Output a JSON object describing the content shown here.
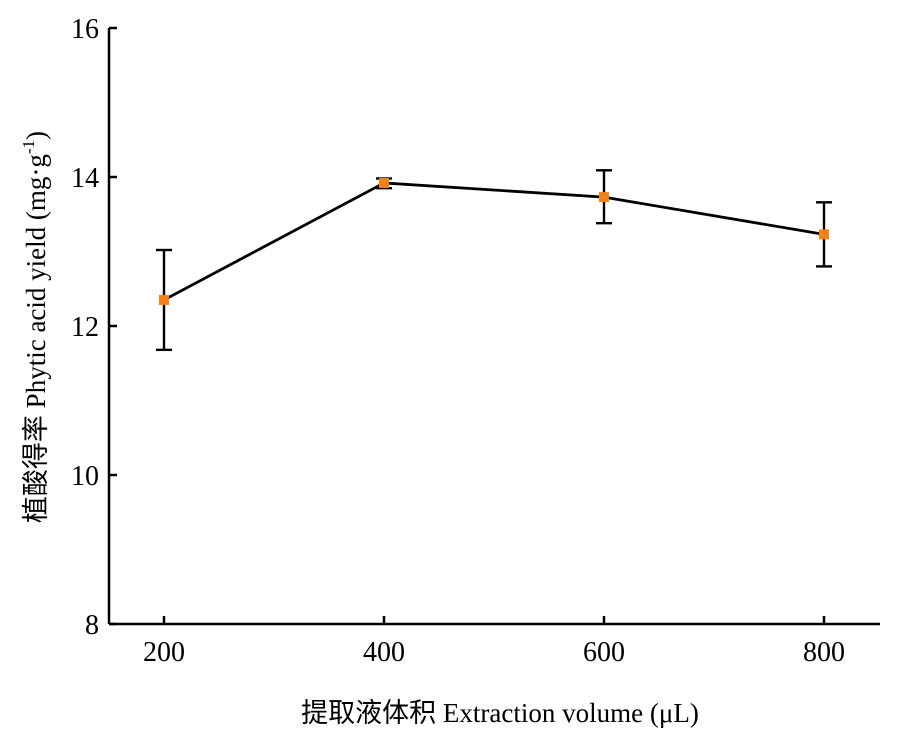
{
  "chart_data": {
    "type": "line",
    "xlabel": "提取液体积 Extraction volume (μL)",
    "ylabel_main": "植酸得率 Phytic acid yield (mg·g",
    "ylabel_sup": "-1",
    "ylabel_close": ")",
    "x": [
      200,
      400,
      600,
      800
    ],
    "x_ticks": [
      "200",
      "400",
      "600",
      "800"
    ],
    "y_ticks": [
      "8",
      "10",
      "12",
      "14",
      "16"
    ],
    "ylim": [
      8,
      16
    ],
    "series": [
      {
        "values": [
          12.35,
          13.92,
          13.73,
          13.23
        ],
        "err_low": [
          11.68,
          13.85,
          13.38,
          12.8
        ],
        "err_high": [
          13.02,
          13.98,
          14.09,
          13.66
        ],
        "marker_color": "#f0821e",
        "line_color": "#000000"
      }
    ],
    "grid": false,
    "legend": "none"
  }
}
